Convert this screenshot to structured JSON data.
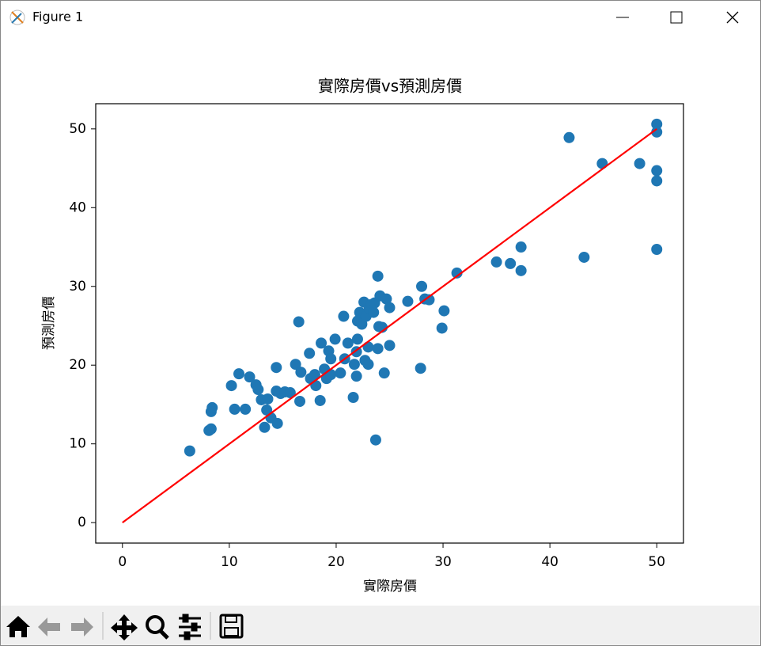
{
  "window": {
    "title": "Figure 1"
  },
  "chart_data": {
    "type": "scatter",
    "title": "實際房價vs預測房價",
    "xlabel": "實際房價",
    "ylabel": "預測房價",
    "xlim": [
      -2.5,
      52.5
    ],
    "ylim": [
      -2.6,
      53.2
    ],
    "xticks": [
      0,
      10,
      20,
      30,
      40,
      50
    ],
    "yticks": [
      0,
      10,
      20,
      30,
      40,
      50
    ],
    "grid": false,
    "series": [
      {
        "type": "scatter",
        "color": "#1f77b4",
        "x": [
          6.3,
          8.1,
          8.3,
          8.3,
          8.4,
          10.2,
          10.5,
          10.9,
          11.5,
          11.9,
          12.5,
          12.7,
          13.0,
          13.3,
          13.5,
          13.6,
          13.9,
          14.5,
          14.4,
          14.4,
          14.8,
          15.2,
          15.7,
          16.2,
          16.5,
          16.6,
          16.7,
          17.5,
          17.6,
          18.0,
          18.1,
          18.5,
          18.6,
          18.9,
          19.1,
          19.3,
          19.5,
          19.5,
          19.9,
          20.4,
          20.7,
          20.8,
          21.1,
          21.6,
          21.7,
          21.9,
          21.9,
          22.0,
          22.0,
          22.2,
          22.4,
          22.6,
          22.7,
          22.8,
          23.0,
          23.0,
          23.1,
          23.3,
          23.5,
          23.6,
          23.7,
          23.9,
          23.9,
          24.0,
          24.1,
          24.3,
          24.5,
          24.7,
          25.0,
          25.0,
          26.7,
          27.9,
          28.0,
          28.3,
          28.7,
          29.9,
          30.1,
          31.3,
          35.0,
          36.3,
          37.3,
          37.3,
          41.8,
          43.2,
          44.9,
          48.4,
          50.0,
          50.0,
          50.0,
          50.0,
          50.0
        ],
        "values": [
          9.1,
          11.7,
          11.9,
          14.1,
          14.6,
          17.4,
          14.4,
          18.9,
          14.4,
          18.5,
          17.5,
          16.9,
          15.6,
          12.1,
          14.3,
          15.7,
          13.3,
          12.6,
          19.7,
          16.7,
          16.4,
          16.6,
          16.5,
          20.1,
          25.5,
          15.4,
          19.1,
          21.5,
          18.3,
          18.8,
          17.4,
          15.5,
          22.8,
          19.5,
          18.3,
          21.8,
          20.8,
          18.8,
          23.3,
          19.0,
          26.2,
          20.8,
          22.8,
          15.9,
          20.1,
          21.7,
          18.6,
          23.3,
          25.6,
          26.7,
          25.2,
          28.0,
          20.6,
          26.2,
          20.1,
          22.3,
          27.2,
          27.7,
          26.7,
          27.9,
          10.5,
          22.1,
          31.3,
          24.9,
          28.8,
          24.8,
          19.0,
          28.4,
          22.5,
          27.3,
          28.1,
          19.6,
          30.0,
          28.4,
          28.3,
          24.7,
          26.9,
          31.7,
          33.1,
          32.9,
          32.0,
          35.0,
          48.9,
          33.7,
          45.6,
          45.6,
          50.6,
          49.6,
          44.7,
          43.4,
          34.7
        ]
      },
      {
        "type": "line",
        "color": "#ff0000",
        "x": [
          0,
          50
        ],
        "values": [
          0,
          50
        ]
      }
    ]
  }
}
